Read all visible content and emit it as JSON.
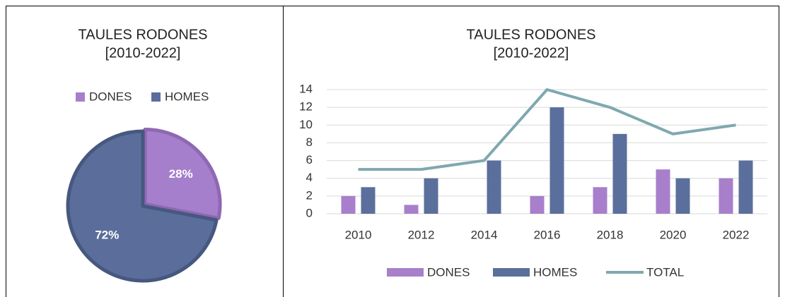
{
  "chart_data": [
    {
      "type": "pie",
      "title": "TAULES RODONES",
      "subtitle": "[2010-2022]",
      "categories": [
        "DONES",
        "HOMES"
      ],
      "values": [
        28,
        72
      ],
      "value_labels": [
        "28%",
        "72%"
      ],
      "colors": [
        "#a57fcb",
        "#5b6e9b"
      ]
    },
    {
      "type": "bar",
      "title": "TAULES RODONES",
      "subtitle": "[2010-2022]",
      "categories": [
        "2010",
        "2012",
        "2014",
        "2016",
        "2018",
        "2020",
        "2022"
      ],
      "series": [
        {
          "name": "DONES",
          "color": "#a77fcb",
          "values": [
            2,
            1,
            0,
            2,
            3,
            5,
            4
          ]
        },
        {
          "name": "HOMES",
          "color": "#5b6f9c",
          "values": [
            3,
            4,
            6,
            12,
            9,
            4,
            6
          ]
        },
        {
          "name": "TOTAL",
          "type": "line",
          "color": "#7fa8b0",
          "values": [
            5,
            5,
            6,
            14,
            12,
            9,
            10
          ]
        }
      ],
      "ylim": [
        0,
        14
      ],
      "yticks": [
        0,
        2,
        4,
        6,
        8,
        10,
        12,
        14
      ],
      "grid": true
    }
  ]
}
